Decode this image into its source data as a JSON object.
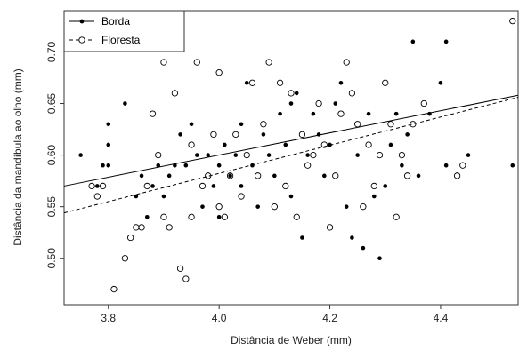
{
  "chart_data": {
    "type": "scatter",
    "title": "",
    "xlabel": "Distância de Weber (mm)",
    "ylabel": "Distância da mandíbula ao olho (mm)",
    "xlim": [
      3.72,
      4.54
    ],
    "ylim": [
      0.455,
      0.74
    ],
    "xticks": [
      "3.8",
      "4.0",
      "4.2",
      "4.4"
    ],
    "yticks": [
      "0.50",
      "0.55",
      "0.60",
      "0.65",
      "0.70"
    ],
    "grid": false,
    "legend_position": "top-left",
    "series": [
      {
        "name": "Borda",
        "marker": "filled-circle",
        "line_style": "solid",
        "color": "#000000",
        "trend": {
          "x": [
            3.72,
            4.54
          ],
          "y": [
            0.57,
            0.658
          ]
        },
        "points": [
          [
            3.75,
            0.6
          ],
          [
            3.78,
            0.57
          ],
          [
            3.79,
            0.59
          ],
          [
            3.8,
            0.63
          ],
          [
            3.8,
            0.61
          ],
          [
            3.8,
            0.59
          ],
          [
            3.83,
            0.65
          ],
          [
            3.85,
            0.56
          ],
          [
            3.86,
            0.58
          ],
          [
            3.87,
            0.54
          ],
          [
            3.88,
            0.57
          ],
          [
            3.89,
            0.59
          ],
          [
            3.9,
            0.56
          ],
          [
            3.91,
            0.58
          ],
          [
            3.92,
            0.59
          ],
          [
            3.93,
            0.62
          ],
          [
            3.94,
            0.59
          ],
          [
            3.95,
            0.63
          ],
          [
            3.96,
            0.6
          ],
          [
            3.97,
            0.55
          ],
          [
            3.98,
            0.6
          ],
          [
            3.99,
            0.57
          ],
          [
            4.0,
            0.54
          ],
          [
            4.0,
            0.59
          ],
          [
            4.01,
            0.61
          ],
          [
            4.02,
            0.58
          ],
          [
            4.03,
            0.6
          ],
          [
            4.04,
            0.63
          ],
          [
            4.04,
            0.57
          ],
          [
            4.05,
            0.67
          ],
          [
            4.06,
            0.59
          ],
          [
            4.07,
            0.55
          ],
          [
            4.08,
            0.62
          ],
          [
            4.09,
            0.6
          ],
          [
            4.1,
            0.58
          ],
          [
            4.11,
            0.64
          ],
          [
            4.12,
            0.61
          ],
          [
            4.13,
            0.65
          ],
          [
            4.13,
            0.56
          ],
          [
            4.14,
            0.66
          ],
          [
            4.15,
            0.52
          ],
          [
            4.16,
            0.6
          ],
          [
            4.17,
            0.64
          ],
          [
            4.18,
            0.62
          ],
          [
            4.19,
            0.58
          ],
          [
            4.2,
            0.61
          ],
          [
            4.21,
            0.65
          ],
          [
            4.22,
            0.67
          ],
          [
            4.23,
            0.55
          ],
          [
            4.24,
            0.52
          ],
          [
            4.25,
            0.6
          ],
          [
            4.26,
            0.51
          ],
          [
            4.27,
            0.64
          ],
          [
            4.28,
            0.56
          ],
          [
            4.29,
            0.5
          ],
          [
            4.3,
            0.57
          ],
          [
            4.31,
            0.61
          ],
          [
            4.32,
            0.64
          ],
          [
            4.33,
            0.59
          ],
          [
            4.34,
            0.62
          ],
          [
            4.35,
            0.71
          ],
          [
            4.36,
            0.58
          ],
          [
            4.38,
            0.64
          ],
          [
            4.4,
            0.67
          ],
          [
            4.41,
            0.59
          ],
          [
            4.41,
            0.71
          ],
          [
            4.45,
            0.6
          ],
          [
            4.53,
            0.59
          ]
        ]
      },
      {
        "name": "Floresta",
        "marker": "open-circle",
        "line_style": "dashed",
        "color": "#000000",
        "trend": {
          "x": [
            3.72,
            4.54
          ],
          "y": [
            0.544,
            0.656
          ]
        },
        "points": [
          [
            3.77,
            0.57
          ],
          [
            3.78,
            0.56
          ],
          [
            3.79,
            0.57
          ],
          [
            3.81,
            0.47
          ],
          [
            3.83,
            0.5
          ],
          [
            3.84,
            0.52
          ],
          [
            3.85,
            0.53
          ],
          [
            3.86,
            0.53
          ],
          [
            3.87,
            0.57
          ],
          [
            3.88,
            0.64
          ],
          [
            3.89,
            0.6
          ],
          [
            3.9,
            0.69
          ],
          [
            3.9,
            0.54
          ],
          [
            3.91,
            0.53
          ],
          [
            3.92,
            0.66
          ],
          [
            3.93,
            0.49
          ],
          [
            3.94,
            0.48
          ],
          [
            3.95,
            0.54
          ],
          [
            3.95,
            0.61
          ],
          [
            3.96,
            0.69
          ],
          [
            3.97,
            0.57
          ],
          [
            3.98,
            0.58
          ],
          [
            3.99,
            0.62
          ],
          [
            4.0,
            0.68
          ],
          [
            4.0,
            0.55
          ],
          [
            4.01,
            0.54
          ],
          [
            4.02,
            0.58
          ],
          [
            4.03,
            0.62
          ],
          [
            4.04,
            0.56
          ],
          [
            4.05,
            0.6
          ],
          [
            4.06,
            0.67
          ],
          [
            4.07,
            0.58
          ],
          [
            4.08,
            0.63
          ],
          [
            4.09,
            0.69
          ],
          [
            4.1,
            0.55
          ],
          [
            4.11,
            0.67
          ],
          [
            4.12,
            0.57
          ],
          [
            4.13,
            0.66
          ],
          [
            4.14,
            0.54
          ],
          [
            4.15,
            0.62
          ],
          [
            4.16,
            0.59
          ],
          [
            4.17,
            0.6
          ],
          [
            4.18,
            0.65
          ],
          [
            4.19,
            0.61
          ],
          [
            4.2,
            0.53
          ],
          [
            4.21,
            0.58
          ],
          [
            4.22,
            0.64
          ],
          [
            4.23,
            0.69
          ],
          [
            4.24,
            0.66
          ],
          [
            4.25,
            0.63
          ],
          [
            4.26,
            0.55
          ],
          [
            4.27,
            0.61
          ],
          [
            4.28,
            0.57
          ],
          [
            4.29,
            0.6
          ],
          [
            4.3,
            0.67
          ],
          [
            4.31,
            0.63
          ],
          [
            4.32,
            0.54
          ],
          [
            4.33,
            0.6
          ],
          [
            4.34,
            0.58
          ],
          [
            4.35,
            0.63
          ],
          [
            4.37,
            0.65
          ],
          [
            4.43,
            0.58
          ],
          [
            4.44,
            0.59
          ],
          [
            4.53,
            0.73
          ]
        ]
      }
    ]
  }
}
